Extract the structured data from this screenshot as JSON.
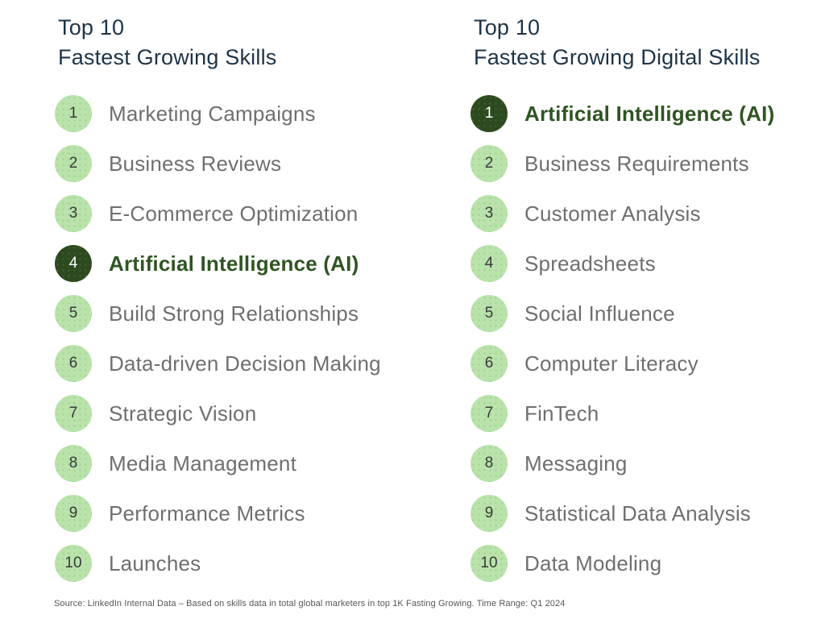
{
  "colors": {
    "background": "#ffffff",
    "title_text": "#1d3447",
    "item_text": "#6f6f6f",
    "badge_light_green": "#b9e3ab",
    "badge_dark_green": "#2c4a1e",
    "highlight_text_green": "#2f5522",
    "badge_number": "#3a3a3a",
    "footer_text": "#565656"
  },
  "columns": [
    {
      "title_line1": "Top 10",
      "title_line2": "Fastest Growing Skills",
      "items": [
        {
          "rank": "1",
          "label": "Marketing Campaigns",
          "highlighted": false
        },
        {
          "rank": "2",
          "label": "Business Reviews",
          "highlighted": false
        },
        {
          "rank": "3",
          "label": "E-Commerce Optimization",
          "highlighted": false
        },
        {
          "rank": "4",
          "label": "Artificial Intelligence (AI)",
          "highlighted": true
        },
        {
          "rank": "5",
          "label": "Build Strong Relationships",
          "highlighted": false
        },
        {
          "rank": "6",
          "label": "Data-driven Decision Making",
          "highlighted": false
        },
        {
          "rank": "7",
          "label": "Strategic Vision",
          "highlighted": false
        },
        {
          "rank": "8",
          "label": "Media Management",
          "highlighted": false
        },
        {
          "rank": "9",
          "label": "Performance Metrics",
          "highlighted": false
        },
        {
          "rank": "10",
          "label": "Launches",
          "highlighted": false
        }
      ]
    },
    {
      "title_line1": "Top 10",
      "title_line2": "Fastest Growing Digital Skills",
      "items": [
        {
          "rank": "1",
          "label": "Artificial Intelligence (AI)",
          "highlighted": true
        },
        {
          "rank": "2",
          "label": "Business Requirements",
          "highlighted": false
        },
        {
          "rank": "3",
          "label": "Customer Analysis",
          "highlighted": false
        },
        {
          "rank": "4",
          "label": "Spreadsheets",
          "highlighted": false
        },
        {
          "rank": "5",
          "label": "Social Influence",
          "highlighted": false
        },
        {
          "rank": "6",
          "label": "Computer Literacy",
          "highlighted": false
        },
        {
          "rank": "7",
          "label": "FinTech",
          "highlighted": false
        },
        {
          "rank": "8",
          "label": "Messaging",
          "highlighted": false
        },
        {
          "rank": "9",
          "label": "Statistical Data Analysis",
          "highlighted": false
        },
        {
          "rank": "10",
          "label": "Data Modeling",
          "highlighted": false
        }
      ]
    }
  ],
  "footer": {
    "text": "Source:  LinkedIn Internal Data – Based on skills data in total global marketers in top 1K Fasting Growing. Time Range: Q1 2024"
  }
}
